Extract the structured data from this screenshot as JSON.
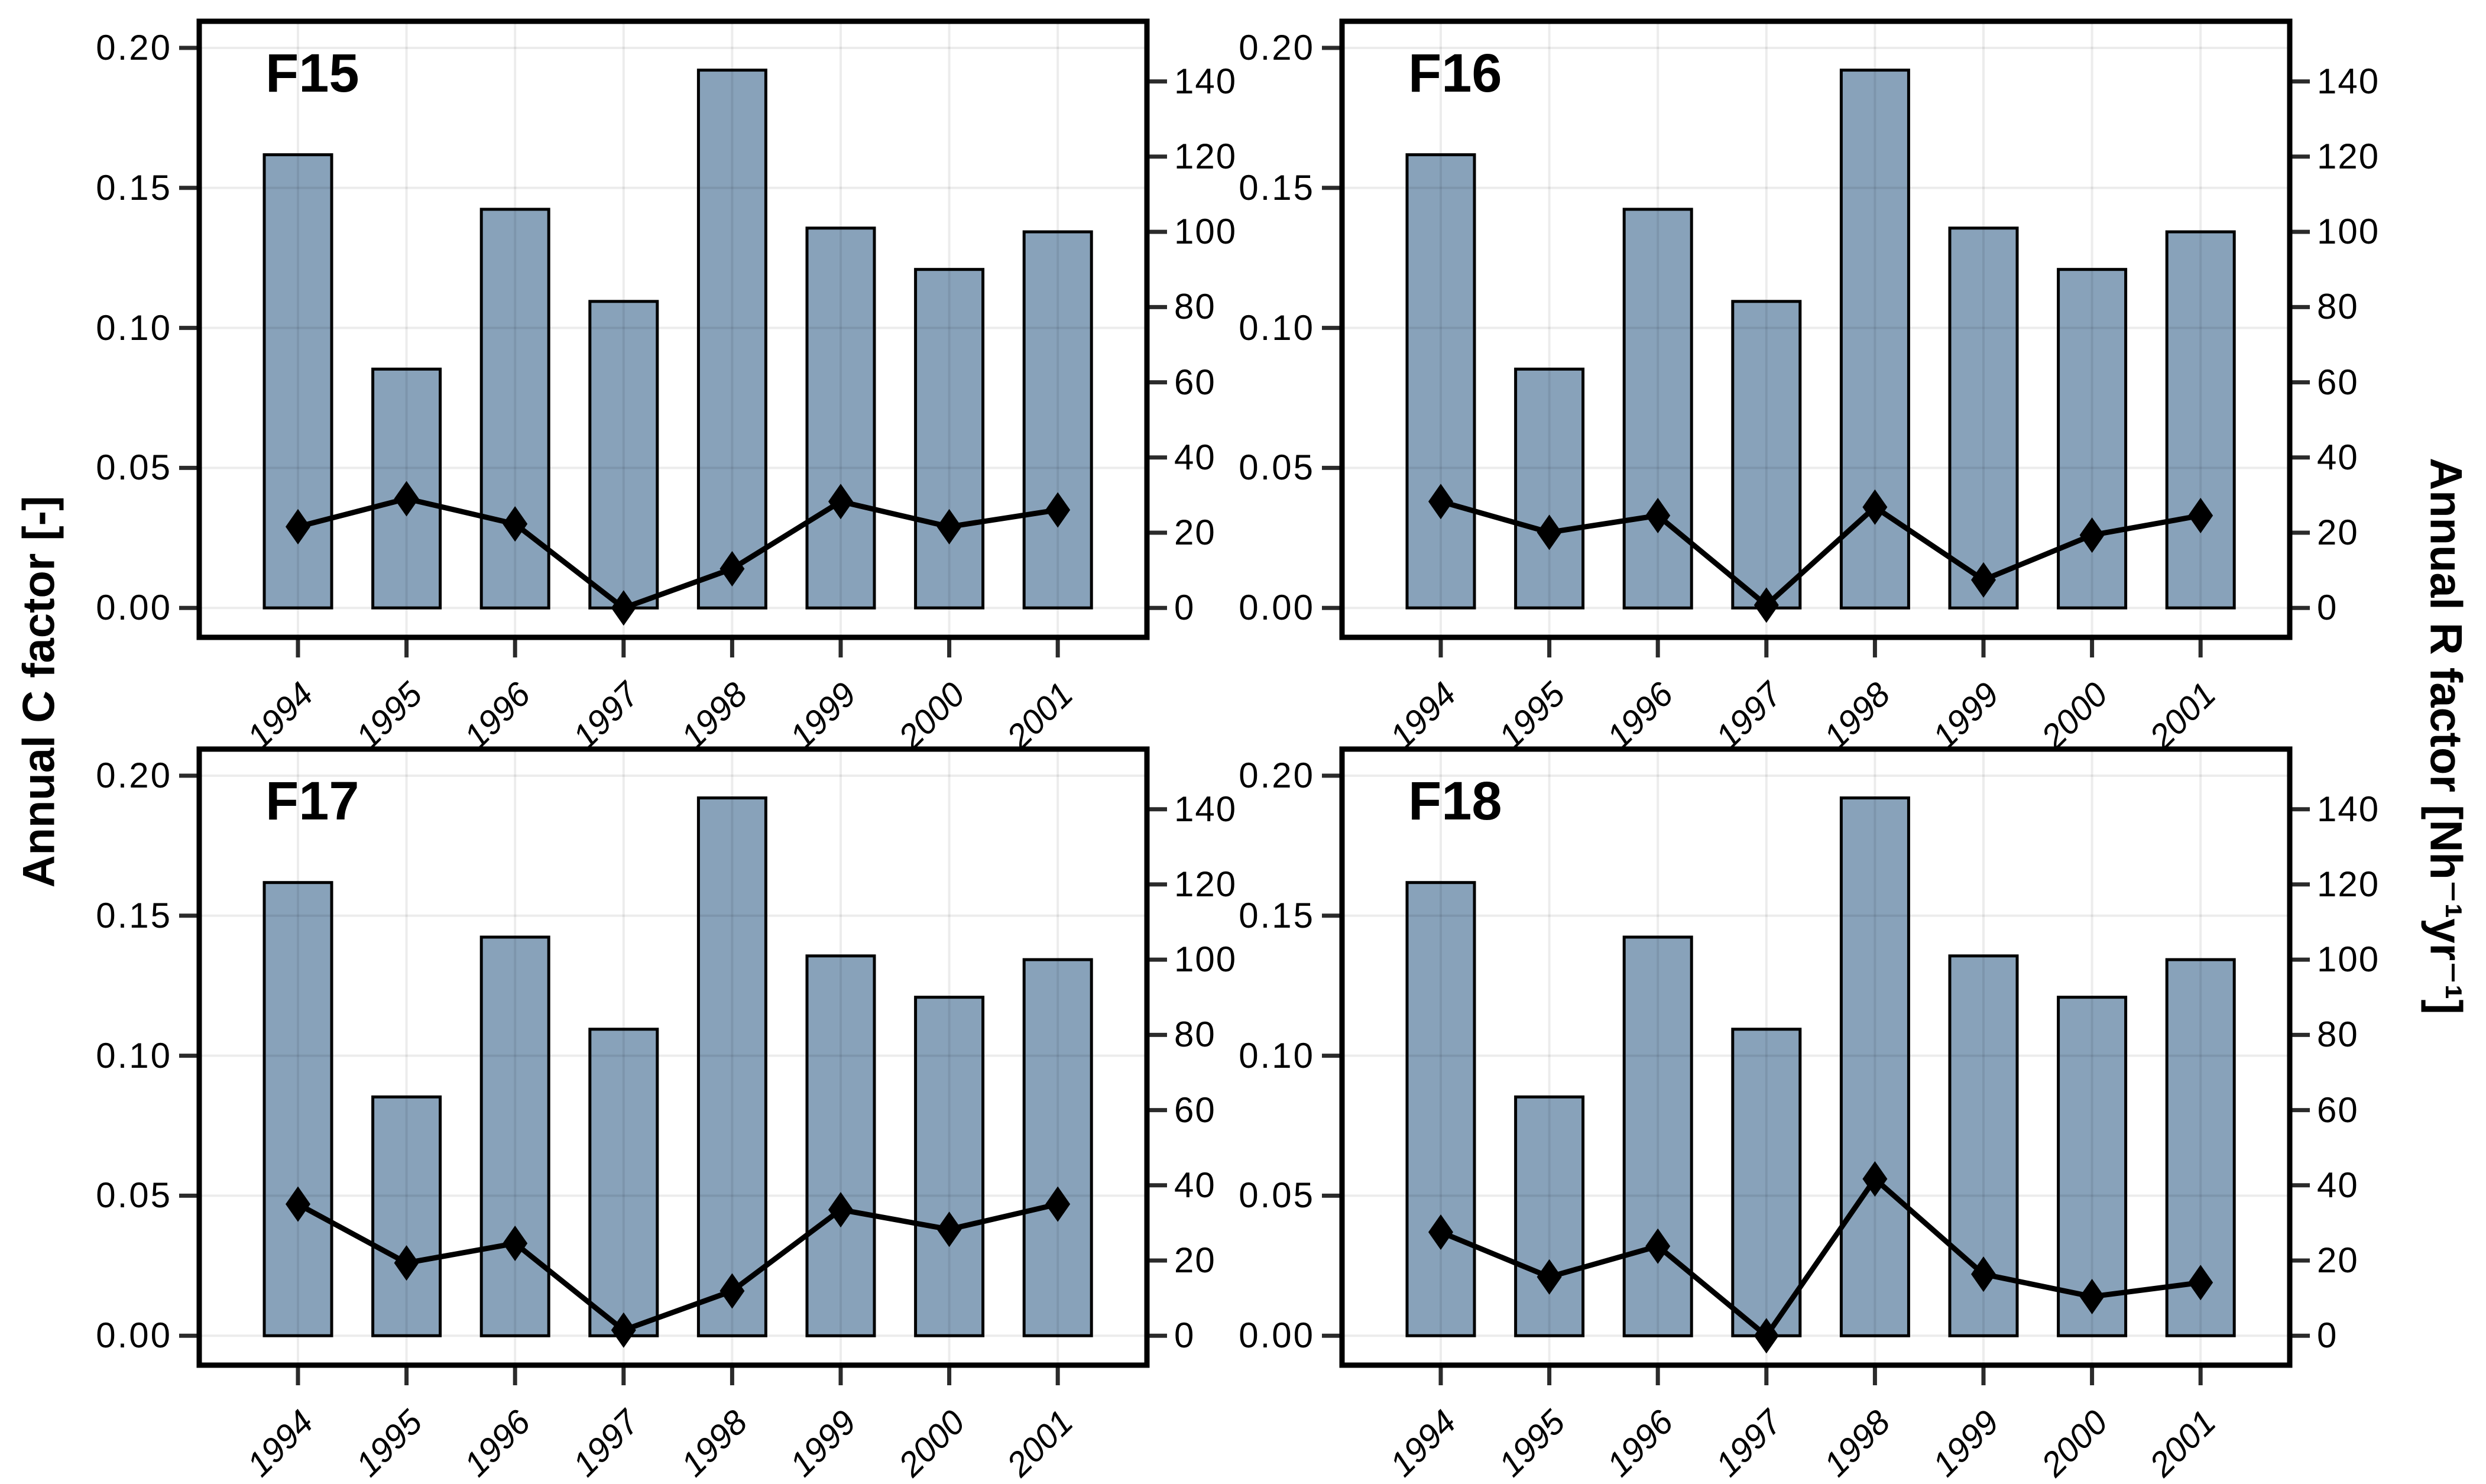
{
  "chart_data": {
    "type": "bar-line-dual-axis-small-multiples",
    "layout": "2x2 panels, shared axes styling, no legend, grid on",
    "categories": [
      "1994",
      "1995",
      "1996",
      "1997",
      "1998",
      "1999",
      "2000",
      "2001"
    ],
    "panels": [
      {
        "title": "F15",
        "c_factor": [
          0.029,
          0.039,
          0.03,
          0.0,
          0.014,
          0.038,
          0.029,
          0.035
        ]
      },
      {
        "title": "F16",
        "c_factor": [
          0.038,
          0.027,
          0.033,
          0.001,
          0.036,
          0.01,
          0.026,
          0.033
        ]
      },
      {
        "title": "F17",
        "c_factor": [
          0.047,
          0.026,
          0.033,
          0.002,
          0.016,
          0.045,
          0.038,
          0.047
        ]
      },
      {
        "title": "F18",
        "c_factor": [
          0.037,
          0.021,
          0.032,
          0.0,
          0.056,
          0.022,
          0.014,
          0.019
        ]
      }
    ],
    "r_factor_bars": {
      "note": "identical bars in all four panels, right axis",
      "values": [
        120.5,
        63.5,
        106,
        81.5,
        143,
        101,
        90,
        100
      ]
    },
    "left_axis": {
      "label": "Annual C factor [-]",
      "tick_labels": [
        "0.00",
        "0.05",
        "0.10",
        "0.15",
        "0.20"
      ],
      "tick_values": [
        0,
        0.05,
        0.1,
        0.15,
        0.2
      ],
      "range": [
        -0.0105,
        0.2095
      ]
    },
    "right_axis": {
      "label": "Annual R factor [Nh⁻¹yr⁻¹]",
      "tick_labels": [
        "0",
        "20",
        "40",
        "60",
        "80",
        "100",
        "120",
        "140"
      ],
      "tick_values": [
        0,
        20,
        40,
        60,
        80,
        100,
        120,
        140
      ],
      "c_per_r": 0.0013431
    },
    "colors": {
      "bar_fill": "#88a2ba",
      "bar_stroke": "#000000",
      "line": "#000000",
      "marker": "#000000",
      "grid": "rgba(0,0,0,0.075)",
      "tick": "#2b2b2b",
      "border": "#000000",
      "background": "#ffffff"
    }
  }
}
